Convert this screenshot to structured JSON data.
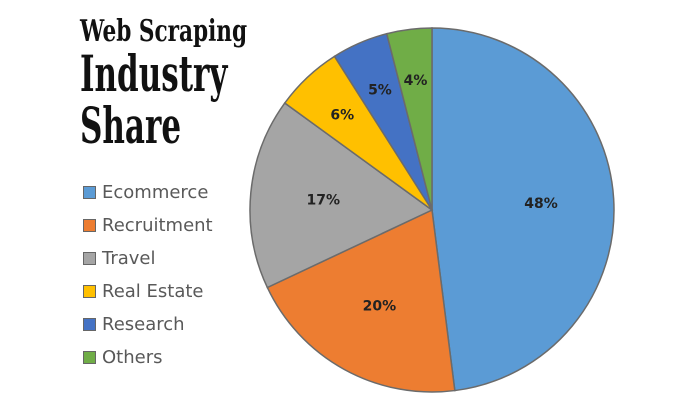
{
  "chart_data": {
    "type": "pie",
    "title": [
      "Web Scraping",
      "Industry",
      "Share"
    ],
    "legend_position": "left",
    "start_angle": "12 o'clock, clockwise",
    "slices": [
      {
        "name": "Ecommerce",
        "value": 48,
        "label": "48%",
        "color": "#5B9BD5"
      },
      {
        "name": "Recruitment",
        "value": 20,
        "label": "20%",
        "color": "#ED7D31"
      },
      {
        "name": "Travel",
        "value": 17,
        "label": "17%",
        "color": "#A5A5A5"
      },
      {
        "name": "Real Estate",
        "value": 6,
        "label": "6%",
        "color": "#FFC000"
      },
      {
        "name": "Research",
        "value": 5,
        "label": "5%",
        "color": "#4472C4"
      },
      {
        "name": "Others",
        "value": 4,
        "label": "4%",
        "color": "#70AD47"
      }
    ]
  }
}
